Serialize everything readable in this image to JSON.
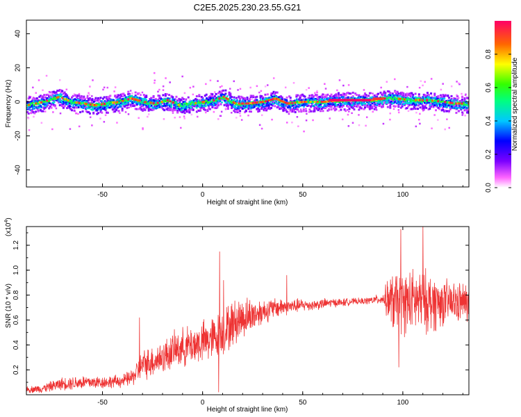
{
  "title": "C2E5.2025.230.23.55.G21",
  "colors": {
    "snr_line": "#ee3333",
    "axis": "#000000",
    "background": "#ffffff"
  },
  "chart_data": [
    {
      "type": "heatmap",
      "title": "",
      "xlabel": "Height of straight line (km)",
      "ylabel": "Frequency (Hz)",
      "xlim": [
        -88,
        133
      ],
      "ylim": [
        -50,
        48
      ],
      "xticks": [
        -50,
        0,
        50,
        100
      ],
      "yticks": [
        -40,
        -20,
        0,
        20,
        40
      ],
      "colorbar": {
        "label": "Normalized spectral amplitude",
        "range": [
          0,
          1
        ],
        "ticks": [
          "0.0",
          "0.2",
          "0.4",
          "0.6",
          "0.8"
        ]
      },
      "ridge": {
        "x": [
          -88,
          -80,
          -72,
          -66,
          -60,
          -54,
          -48,
          -42,
          -36,
          -30,
          -24,
          -18,
          -12,
          -6,
          0,
          6,
          10,
          16,
          22,
          30,
          36,
          42,
          50,
          60,
          70,
          80,
          86,
          90,
          96,
          104,
          112,
          120,
          126,
          133
        ],
        "frequency": [
          -2,
          0,
          3,
          0,
          -1,
          -2,
          -1,
          0,
          2,
          0,
          -1,
          1,
          -2,
          -1,
          0,
          1,
          3,
          -1,
          -1,
          0,
          2,
          -1,
          0,
          0,
          1,
          1,
          1,
          2,
          2,
          1,
          1,
          0,
          -1,
          -1
        ]
      }
    },
    {
      "type": "line",
      "title": "",
      "xlabel": "Height of straight line (km)",
      "ylabel": "SNR (10 * v/v)",
      "y_multiplier": "(x10^4)",
      "xlim": [
        -88,
        133
      ],
      "ylim": [
        0,
        1.35
      ],
      "xticks": [
        -50,
        0,
        50,
        100
      ],
      "yticks": [
        0.2,
        0.4,
        0.6,
        0.8,
        1.0,
        1.2
      ],
      "envelope": {
        "x": [
          -88,
          -80,
          -70,
          -60,
          -50,
          -40,
          -35,
          -30,
          -25,
          -20,
          -15,
          -10,
          -5,
          0,
          5,
          10,
          15,
          20,
          25,
          30,
          35,
          40,
          45,
          50,
          55,
          60,
          65,
          70,
          75,
          80,
          85,
          90,
          93,
          95,
          100,
          105,
          110,
          115,
          120,
          125,
          133
        ],
        "mean": [
          0.04,
          0.05,
          0.09,
          0.1,
          0.1,
          0.11,
          0.14,
          0.24,
          0.27,
          0.3,
          0.35,
          0.38,
          0.4,
          0.42,
          0.45,
          0.5,
          0.57,
          0.62,
          0.64,
          0.67,
          0.69,
          0.71,
          0.71,
          0.72,
          0.72,
          0.73,
          0.74,
          0.74,
          0.75,
          0.75,
          0.76,
          0.77,
          0.76,
          0.74,
          0.74,
          0.75,
          0.75,
          0.74,
          0.74,
          0.74,
          0.74
        ],
        "spread": [
          0.03,
          0.04,
          0.06,
          0.07,
          0.06,
          0.06,
          0.08,
          0.14,
          0.15,
          0.16,
          0.17,
          0.18,
          0.19,
          0.2,
          0.21,
          0.22,
          0.22,
          0.2,
          0.16,
          0.12,
          0.1,
          0.09,
          0.07,
          0.06,
          0.05,
          0.05,
          0.04,
          0.04,
          0.03,
          0.03,
          0.04,
          0.05,
          0.22,
          0.28,
          0.3,
          0.3,
          0.3,
          0.28,
          0.22,
          0.2,
          0.18
        ]
      },
      "spikes": [
        {
          "x": -31.5,
          "y": 0.62
        },
        {
          "x": 8.5,
          "y": 1.15
        },
        {
          "x": 10.5,
          "y": 0.92
        },
        {
          "x": 42,
          "y": 0.96
        },
        {
          "x": 99,
          "y": 1.33
        },
        {
          "x": 110,
          "y": 1.35
        },
        {
          "x": 98,
          "y": 0.22
        },
        {
          "x": 8,
          "y": 0.02
        }
      ]
    }
  ]
}
